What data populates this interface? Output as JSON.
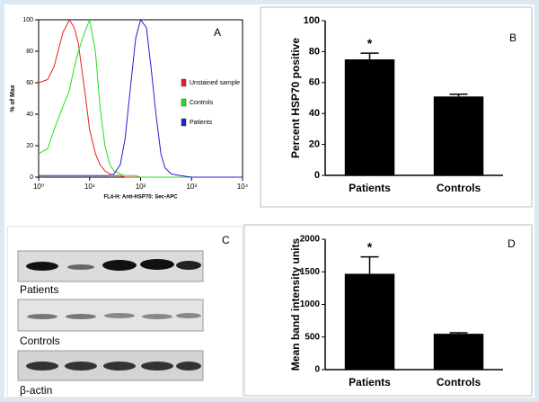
{
  "chart_data": [
    {
      "type": "line",
      "xscale": "log",
      "annotation": "A",
      "xlabel": "FL4-H: Anti-HSP70: Sec-APC",
      "ylabel": "% of Max",
      "x": [
        1,
        1.5,
        2,
        3,
        4,
        5,
        6,
        8,
        10,
        13,
        16,
        20,
        25,
        30,
        40,
        50,
        60,
        80,
        100,
        130,
        160,
        200,
        250,
        300,
        400,
        600,
        1000,
        10000
      ],
      "xlim": [
        1,
        10000
      ],
      "xticks": [
        {
          "value": 1,
          "label": "10⁰"
        },
        {
          "value": 10,
          "label": "10¹"
        },
        {
          "value": 100,
          "label": "10²"
        },
        {
          "value": 1000,
          "label": "10³"
        },
        {
          "value": 10000,
          "label": "10⁴"
        }
      ],
      "ylim": [
        0,
        100
      ],
      "yticks": [
        0,
        20,
        40,
        60,
        80,
        100
      ],
      "legend": "right",
      "series": [
        {
          "name": "Unstained sample",
          "color": "#e8201c",
          "values": [
            60,
            62,
            70,
            92,
            100,
            95,
            85,
            55,
            30,
            15,
            8,
            4,
            2,
            1,
            1,
            0,
            0,
            0,
            0,
            0,
            0,
            0,
            0,
            0,
            0,
            0,
            0,
            0
          ]
        },
        {
          "name": "Controls",
          "color": "#22e01c",
          "values": [
            15,
            18,
            30,
            45,
            55,
            70,
            80,
            92,
            100,
            80,
            45,
            20,
            8,
            4,
            2,
            1,
            1,
            1,
            0,
            0,
            0,
            0,
            0,
            0,
            0,
            0,
            0,
            0
          ]
        },
        {
          "name": "Patients",
          "color": "#2020d0",
          "values": [
            1,
            1,
            1,
            1,
            1,
            1,
            1,
            1,
            1,
            1,
            1,
            1,
            1,
            2,
            8,
            25,
            50,
            88,
            100,
            95,
            70,
            40,
            15,
            6,
            2,
            1,
            0,
            0
          ]
        }
      ]
    },
    {
      "type": "bar",
      "annotation": "B",
      "marker": "*",
      "ylabel": "Percent HSP70 positive",
      "categories": [
        "Patients",
        "Controls"
      ],
      "values": [
        75,
        51
      ],
      "errors": [
        4,
        1.5
      ],
      "color": "#000000",
      "ylim": [
        0,
        100
      ],
      "yticks": [
        0,
        20,
        40,
        60,
        80,
        100
      ]
    },
    {
      "type": "bar",
      "annotation": "D",
      "marker": "*",
      "ylabel": "Mean band intensity units",
      "categories": [
        "Patients",
        "Controls"
      ],
      "values": [
        1470,
        550
      ],
      "errors": [
        260,
        15
      ],
      "color": "#000000",
      "ylim": [
        0,
        2000
      ],
      "yticks": [
        0,
        500,
        1000,
        1500,
        2000
      ]
    }
  ],
  "blot": {
    "label": "C",
    "rows": [
      "Patients",
      "Controls",
      "β-actin"
    ]
  }
}
